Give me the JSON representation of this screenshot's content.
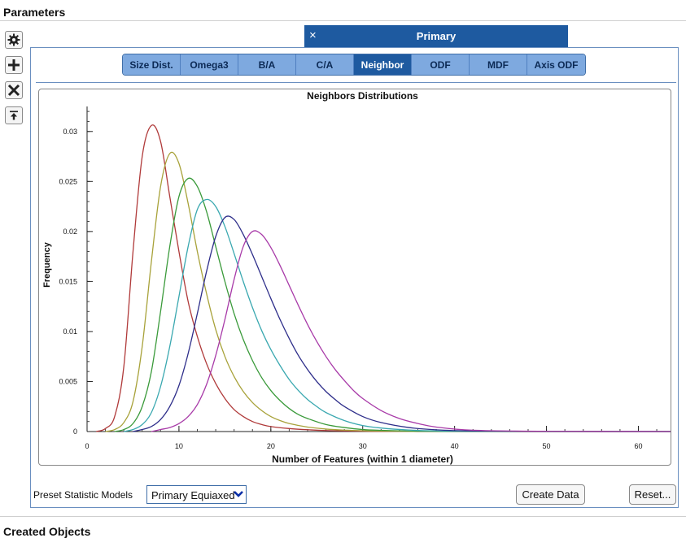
{
  "sections": {
    "parameters": "Parameters",
    "created_objects": "Created Objects"
  },
  "toolbar": [
    {
      "name": "settings-icon",
      "glyph": "gear"
    },
    {
      "name": "add-icon",
      "glyph": "plus"
    },
    {
      "name": "remove-icon",
      "glyph": "x"
    },
    {
      "name": "collapse-icon",
      "glyph": "arrow-up-bar"
    }
  ],
  "phase_tab": {
    "close": "×",
    "title": "Primary"
  },
  "subtabs": [
    {
      "label": "Size Dist.",
      "active": false
    },
    {
      "label": "Omega3",
      "active": false
    },
    {
      "label": "B/A",
      "active": false
    },
    {
      "label": "C/A",
      "active": false
    },
    {
      "label": "Neighbor",
      "active": true
    },
    {
      "label": "ODF",
      "active": false
    },
    {
      "label": "MDF",
      "active": false
    },
    {
      "label": "Axis ODF",
      "active": false
    }
  ],
  "preset": {
    "label": "Preset Statistic Models",
    "value": "Primary Equiaxed"
  },
  "buttons": {
    "create": "Create Data",
    "reset": "Reset..."
  },
  "chart_data": {
    "type": "line",
    "title": "Neighbors Distributions",
    "xlabel": "Number of Features (within 1 diameter)",
    "ylabel": "Frequency",
    "xlim": [
      0,
      63.5
    ],
    "ylim": [
      0,
      0.0325
    ],
    "xticks": [
      0,
      10,
      20,
      30,
      40,
      50,
      60
    ],
    "yticks": [
      0,
      0.005,
      0.01,
      0.015,
      0.02,
      0.025,
      0.03
    ],
    "ytick_labels": [
      "0",
      "0.005",
      "0.01",
      "0.015",
      "0.02",
      "0.025",
      "0.03"
    ],
    "grid": false,
    "legend": "none",
    "series": [
      {
        "color": "#b03a3a",
        "x": [
          1,
          2,
          3,
          4,
          5,
          6,
          7,
          8,
          9,
          10,
          11,
          12,
          13,
          14,
          15,
          16,
          17,
          18,
          19,
          20,
          22,
          24,
          26,
          28,
          30,
          32,
          35,
          38,
          42,
          50,
          63.5
        ],
        "values": [
          0,
          0.0003,
          0.0015,
          0.0065,
          0.018,
          0.0275,
          0.0306,
          0.029,
          0.0235,
          0.018,
          0.013,
          0.0095,
          0.0068,
          0.0048,
          0.0033,
          0.0022,
          0.0015,
          0.001,
          0.0007,
          0.0005,
          0.0003,
          0.00018,
          0.0001,
          6e-05,
          4e-05,
          2e-05,
          1e-05,
          0,
          0,
          0,
          0
        ]
      },
      {
        "color": "#a8a23a",
        "x": [
          2,
          3,
          4,
          5,
          6,
          7,
          8,
          9,
          10,
          11,
          12,
          13,
          14,
          15,
          16,
          17,
          18,
          19,
          20,
          21,
          22,
          24,
          26,
          28,
          30,
          32,
          35,
          38,
          42,
          50,
          63.5
        ],
        "values": [
          0,
          0.0002,
          0.0009,
          0.003,
          0.0085,
          0.017,
          0.0245,
          0.0278,
          0.0268,
          0.0228,
          0.018,
          0.0138,
          0.0102,
          0.0075,
          0.0055,
          0.004,
          0.0029,
          0.0021,
          0.0015,
          0.0011,
          0.0008,
          0.00045,
          0.00025,
          0.00014,
          8e-05,
          5e-05,
          2e-05,
          1e-05,
          0,
          0,
          0
        ]
      },
      {
        "color": "#3a9a3a",
        "x": [
          3,
          4,
          5,
          6,
          7,
          8,
          9,
          10,
          11,
          12,
          13,
          14,
          15,
          16,
          17,
          18,
          19,
          20,
          21,
          22,
          23,
          24,
          26,
          28,
          30,
          32,
          35,
          38,
          42,
          50,
          63.5
        ],
        "values": [
          0,
          0.0002,
          0.0008,
          0.0025,
          0.006,
          0.012,
          0.0185,
          0.0235,
          0.0253,
          0.0245,
          0.022,
          0.0185,
          0.015,
          0.0118,
          0.0092,
          0.0071,
          0.0054,
          0.0041,
          0.0031,
          0.0023,
          0.0017,
          0.0013,
          0.0007,
          0.0004,
          0.0002,
          0.00012,
          5e-05,
          2e-05,
          1e-05,
          0,
          0
        ]
      },
      {
        "color": "#3aa8b0",
        "x": [
          4,
          5,
          6,
          7,
          8,
          9,
          10,
          11,
          12,
          13,
          14,
          15,
          16,
          17,
          18,
          19,
          20,
          21,
          22,
          23,
          24,
          25,
          26,
          28,
          30,
          32,
          35,
          38,
          42,
          50,
          63.5
        ],
        "values": [
          0,
          0.0002,
          0.0007,
          0.0019,
          0.0045,
          0.0085,
          0.0135,
          0.0185,
          0.0222,
          0.0232,
          0.0225,
          0.0205,
          0.0178,
          0.015,
          0.0124,
          0.0101,
          0.0082,
          0.0066,
          0.0052,
          0.0041,
          0.0032,
          0.0025,
          0.0019,
          0.0011,
          0.0006,
          0.00035,
          0.00015,
          6e-05,
          2e-05,
          0,
          0
        ]
      },
      {
        "color": "#2e2e8a",
        "x": [
          5,
          6,
          7,
          8,
          9,
          10,
          11,
          12,
          13,
          14,
          15,
          16,
          17,
          18,
          19,
          20,
          21,
          22,
          23,
          24,
          25,
          26,
          27,
          28,
          30,
          32,
          35,
          38,
          42,
          50,
          63.5
        ],
        "values": [
          0,
          0.0002,
          0.0005,
          0.0012,
          0.0025,
          0.0046,
          0.0078,
          0.0118,
          0.016,
          0.0195,
          0.0214,
          0.0212,
          0.0197,
          0.0177,
          0.0155,
          0.0133,
          0.0112,
          0.0093,
          0.0076,
          0.0062,
          0.005,
          0.004,
          0.0032,
          0.0025,
          0.0015,
          0.0009,
          0.0004,
          0.00017,
          6e-05,
          1e-05,
          0
        ]
      },
      {
        "color": "#a83aa8",
        "x": [
          7,
          8,
          9,
          10,
          11,
          12,
          13,
          14,
          15,
          16,
          17,
          18,
          19,
          20,
          21,
          22,
          23,
          24,
          25,
          26,
          27,
          28,
          29,
          30,
          32,
          34,
          36,
          38,
          42,
          50,
          63.5
        ],
        "values": [
          0,
          0.0002,
          0.0004,
          0.0008,
          0.0015,
          0.0027,
          0.0047,
          0.0076,
          0.0112,
          0.0152,
          0.0185,
          0.02,
          0.0197,
          0.0184,
          0.0166,
          0.0146,
          0.0126,
          0.0107,
          0.009,
          0.0075,
          0.0062,
          0.0051,
          0.0041,
          0.0033,
          0.0021,
          0.0013,
          0.0008,
          0.00045,
          0.00013,
          2e-05,
          0
        ]
      }
    ]
  }
}
